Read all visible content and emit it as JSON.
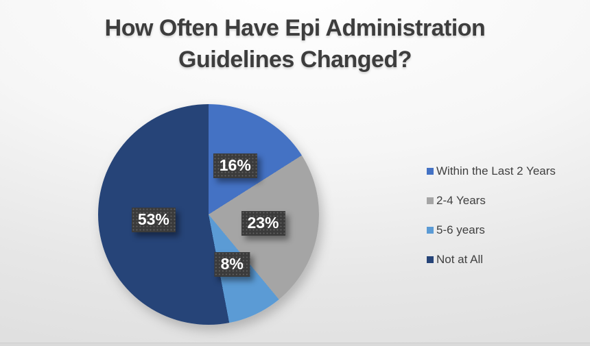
{
  "slide": {
    "title": "How Often Have Epi Administration Guidelines Changed?",
    "title_lines": [
      "How Often Have Epi Administration",
      "Guidelines Changed?"
    ]
  },
  "chart_data": {
    "type": "pie",
    "title": "How Often Have Epi Administration Guidelines Changed?",
    "start_angle_deg": 0,
    "direction": "clockwise",
    "legend_position": "right",
    "data_label_style": "dark-dotted-box-white-bold-text",
    "series": [
      {
        "name": "Within the Last 2 Years",
        "value": 16,
        "label": "16%",
        "color": "#4472C4"
      },
      {
        "name": "2-4 Years",
        "value": 23,
        "label": "23%",
        "color": "#A5A5A5"
      },
      {
        "name": "5-6 years",
        "value": 8,
        "label": "8%",
        "color": "#5B9BD5"
      },
      {
        "name": "Not at All",
        "value": 53,
        "label": "53%",
        "color": "#264478"
      }
    ],
    "colors": {
      "title_text": "#3d3d3d",
      "legend_text": "#404040",
      "label_box": "#3b3b3b",
      "label_text": "#ffffff",
      "background_top": "#ffffff",
      "background_bottom": "#e0e0e0"
    }
  }
}
